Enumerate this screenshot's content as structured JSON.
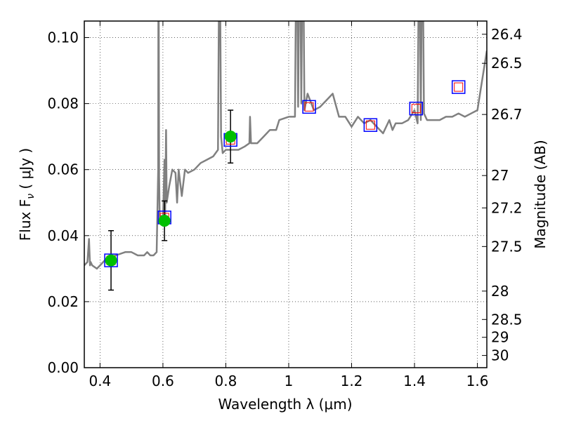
{
  "chart_data": {
    "type": "line",
    "xlabel": "Wavelength  λ (μm)",
    "ylabel": "Flux  F",
    "ylabel_sub": "ν",
    "ylabel_unit": " ( μJy )",
    "y2label": "Magnitude (AB)",
    "xlim": [
      0.35,
      1.63
    ],
    "ylim": [
      0.0,
      0.105
    ],
    "x_ticks": [
      0.4,
      0.6,
      0.8,
      1.0,
      1.2,
      1.4,
      1.6
    ],
    "x_tick_labels": [
      "0.4",
      "0.6",
      "0.8",
      "1",
      "1.2",
      "1.4",
      "1.6"
    ],
    "y_ticks": [
      0.0,
      0.02,
      0.04,
      0.06,
      0.08,
      0.1
    ],
    "y_tick_labels": [
      "0.00",
      "0.02",
      "0.04",
      "0.06",
      "0.08",
      "0.10"
    ],
    "y2_ticks": [
      {
        "label": "26.4",
        "flux": 0.101
      },
      {
        "label": "26.5",
        "flux": 0.0922
      },
      {
        "label": "26.7",
        "flux": 0.0767
      },
      {
        "label": "27",
        "flux": 0.0582
      },
      {
        "label": "27.2",
        "flux": 0.0484
      },
      {
        "label": "27.5",
        "flux": 0.0367
      },
      {
        "label": "28",
        "flux": 0.0232
      },
      {
        "label": "28.5",
        "flux": 0.0146
      },
      {
        "label": "29",
        "flux": 0.0092
      },
      {
        "label": "30",
        "flux": 0.0037
      }
    ],
    "grid": true,
    "colors": {
      "spectrum": "#808080",
      "observed": "#00bf00",
      "model_box": "#0000ff",
      "model_inner": "#ff0000",
      "errorbar": "#000000"
    },
    "spectrum": {
      "x": [
        0.35,
        0.36,
        0.365,
        0.368,
        0.37,
        0.375,
        0.39,
        0.4,
        0.42,
        0.45,
        0.48,
        0.5,
        0.52,
        0.54,
        0.55,
        0.56,
        0.57,
        0.58,
        0.585,
        0.586,
        0.588,
        0.59,
        0.595,
        0.6,
        0.605,
        0.607,
        0.61,
        0.612,
        0.62,
        0.63,
        0.64,
        0.645,
        0.65,
        0.66,
        0.67,
        0.68,
        0.7,
        0.72,
        0.74,
        0.76,
        0.775,
        0.78,
        0.785,
        0.79,
        0.8,
        0.82,
        0.84,
        0.86,
        0.875,
        0.877,
        0.88,
        0.9,
        0.92,
        0.94,
        0.96,
        0.97,
        1.0,
        1.02,
        1.025,
        1.03,
        1.035,
        1.04,
        1.045,
        1.05,
        1.06,
        1.08,
        1.1,
        1.12,
        1.14,
        1.16,
        1.18,
        1.2,
        1.22,
        1.24,
        1.26,
        1.28,
        1.3,
        1.32,
        1.33,
        1.34,
        1.36,
        1.38,
        1.4,
        1.41,
        1.415,
        1.42,
        1.425,
        1.43,
        1.44,
        1.46,
        1.48,
        1.5,
        1.52,
        1.54,
        1.56,
        1.58,
        1.6,
        1.62,
        1.63
      ],
      "y": [
        0.031,
        0.032,
        0.039,
        0.031,
        0.032,
        0.031,
        0.03,
        0.031,
        0.033,
        0.034,
        0.035,
        0.035,
        0.034,
        0.034,
        0.035,
        0.034,
        0.034,
        0.035,
        0.06,
        0.14,
        0.058,
        0.044,
        0.046,
        0.044,
        0.063,
        0.045,
        0.072,
        0.05,
        0.055,
        0.06,
        0.059,
        0.05,
        0.06,
        0.052,
        0.06,
        0.059,
        0.06,
        0.062,
        0.063,
        0.064,
        0.066,
        0.14,
        0.07,
        0.065,
        0.066,
        0.066,
        0.066,
        0.067,
        0.068,
        0.076,
        0.068,
        0.068,
        0.07,
        0.072,
        0.072,
        0.075,
        0.076,
        0.076,
        0.14,
        0.079,
        0.14,
        0.08,
        0.14,
        0.078,
        0.083,
        0.078,
        0.079,
        0.081,
        0.083,
        0.076,
        0.076,
        0.073,
        0.076,
        0.074,
        0.075,
        0.073,
        0.071,
        0.075,
        0.072,
        0.074,
        0.074,
        0.075,
        0.078,
        0.074,
        0.14,
        0.075,
        0.14,
        0.077,
        0.075,
        0.075,
        0.075,
        0.076,
        0.076,
        0.077,
        0.076,
        0.077,
        0.078,
        0.09,
        0.096
      ]
    },
    "model_points": {
      "x": [
        0.435,
        0.605,
        0.815,
        1.065,
        1.26,
        1.405,
        1.54
      ],
      "y": [
        0.0325,
        0.0455,
        0.069,
        0.079,
        0.0735,
        0.0785,
        0.085
      ]
    },
    "observed_points": {
      "x": [
        0.435,
        0.605,
        0.815
      ],
      "y": [
        0.0325,
        0.0445,
        0.07
      ],
      "yerr": [
        0.009,
        0.006,
        0.008
      ]
    }
  }
}
